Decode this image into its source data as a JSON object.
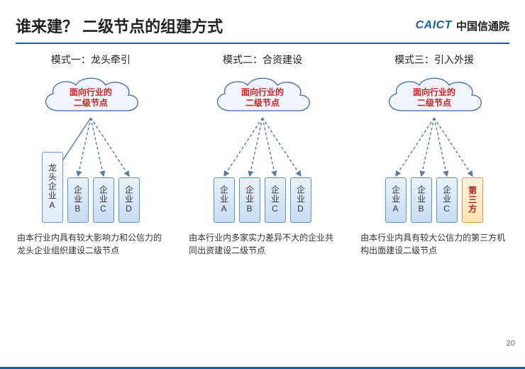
{
  "title": "谁来建？  二级节点的组建方式",
  "logo": {
    "latin": "CAICT",
    "cn": "中国信通院"
  },
  "page_number": "20",
  "cloud": {
    "line1": "面向行业的",
    "line2": "二级节点",
    "text_color": "#d02020",
    "fill": "#f0f5fc",
    "stroke": "#3f6aa8",
    "width": 150,
    "height": 68
  },
  "arrow_color": "#5a7aa0",
  "box_normal": {
    "bg_top": "#eaf2fb",
    "bg_bot": "#c7dcf3",
    "border": "#5a8fc8",
    "text": "#333333"
  },
  "box_tall": {
    "bg_top": "#f6f9fd",
    "bg_bot": "#e2edf9",
    "border": "#6a9ad1",
    "text": "#333333"
  },
  "box_third": {
    "bg_top": "#fff2de",
    "bg_bot": "#ffe2b0",
    "border": "#d99a3e",
    "text": "#b02020"
  },
  "modes": [
    {
      "title": "模式一：龙头牵引",
      "boxes": [
        {
          "label": "龙头企业A",
          "kind": "tall"
        },
        {
          "label": "企业B",
          "kind": "normal"
        },
        {
          "label": "企业C",
          "kind": "normal"
        },
        {
          "label": "企业D",
          "kind": "normal"
        }
      ],
      "desc": "由本行业内具有较大影响力和公信力的龙头企业组织建设二级节点"
    },
    {
      "title": "模式二：合资建设",
      "boxes": [
        {
          "label": "企业A",
          "kind": "normal"
        },
        {
          "label": "企业B",
          "kind": "normal"
        },
        {
          "label": "企业C",
          "kind": "normal"
        },
        {
          "label": "企业D",
          "kind": "normal"
        }
      ],
      "desc": "由本行业内多家实力差异不大的企业共同出资建设二级节点"
    },
    {
      "title": "模式三：引入外援",
      "boxes": [
        {
          "label": "企业A",
          "kind": "normal"
        },
        {
          "label": "企业B",
          "kind": "normal"
        },
        {
          "label": "企业C",
          "kind": "normal"
        },
        {
          "label": "第三方",
          "kind": "third"
        }
      ],
      "desc": "由本行业内具有较大公信力的第三方机构出面建设二级节点"
    }
  ]
}
